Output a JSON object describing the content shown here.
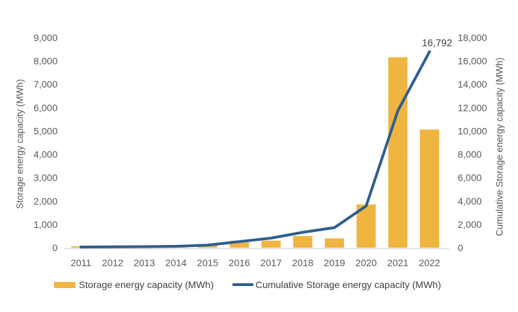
{
  "chart_data": {
    "type": "combo-bar-line",
    "title": "",
    "categories": [
      "2011",
      "2012",
      "2013",
      "2014",
      "2015",
      "2016",
      "2017",
      "2018",
      "2019",
      "2020",
      "2021",
      "2022"
    ],
    "series": [
      {
        "name": "Storage energy capacity (MWh)",
        "type": "bar",
        "axis": "left",
        "color": "#F0B541",
        "values": [
          60,
          10,
          20,
          30,
          100,
          300,
          300,
          500,
          400,
          1850,
          8160,
          5062
        ]
      },
      {
        "name": "Cumulative Storage energy capacity (MWh)",
        "type": "line",
        "axis": "right",
        "color": "#2E5E8E",
        "values": [
          60,
          70,
          90,
          120,
          220,
          520,
          820,
          1320,
          1720,
          3570,
          11730,
          16792
        ]
      }
    ],
    "left_axis": {
      "title": "Storage energy capacity (MWh)",
      "min": 0,
      "max": 9000,
      "step": 1000,
      "tick_labels": [
        "0",
        "1,000",
        "2,000",
        "3,000",
        "4,000",
        "5,000",
        "6,000",
        "7,000",
        "8,000",
        "9,000"
      ]
    },
    "right_axis": {
      "title": "Cumulative Storage energy capacity (MWh)",
      "min": 0,
      "max": 18000,
      "step": 2000,
      "tick_labels": [
        "0",
        "2,000",
        "4,000",
        "6,000",
        "8,000",
        "10,000",
        "12,000",
        "14,000",
        "16,000",
        "18,000"
      ]
    },
    "annotation": {
      "text": "16,792",
      "series": "Cumulative Storage energy capacity (MWh)",
      "category": "2022",
      "value": 16792
    },
    "legend": {
      "position": "bottom",
      "items": [
        {
          "label": "Storage energy capacity (MWh)",
          "swatch": "bar",
          "color": "#F0B541"
        },
        {
          "label": "Cumulative Storage energy capacity (MWh)",
          "swatch": "line",
          "color": "#2E5E8E"
        }
      ]
    },
    "grid": false,
    "styles": {
      "tick_color": "#595959",
      "axis_title_color": "#595959",
      "axis_line_color": "#D9D9D9",
      "annotation_color": "#3F3F3F",
      "background": "#FFFFFF"
    }
  }
}
